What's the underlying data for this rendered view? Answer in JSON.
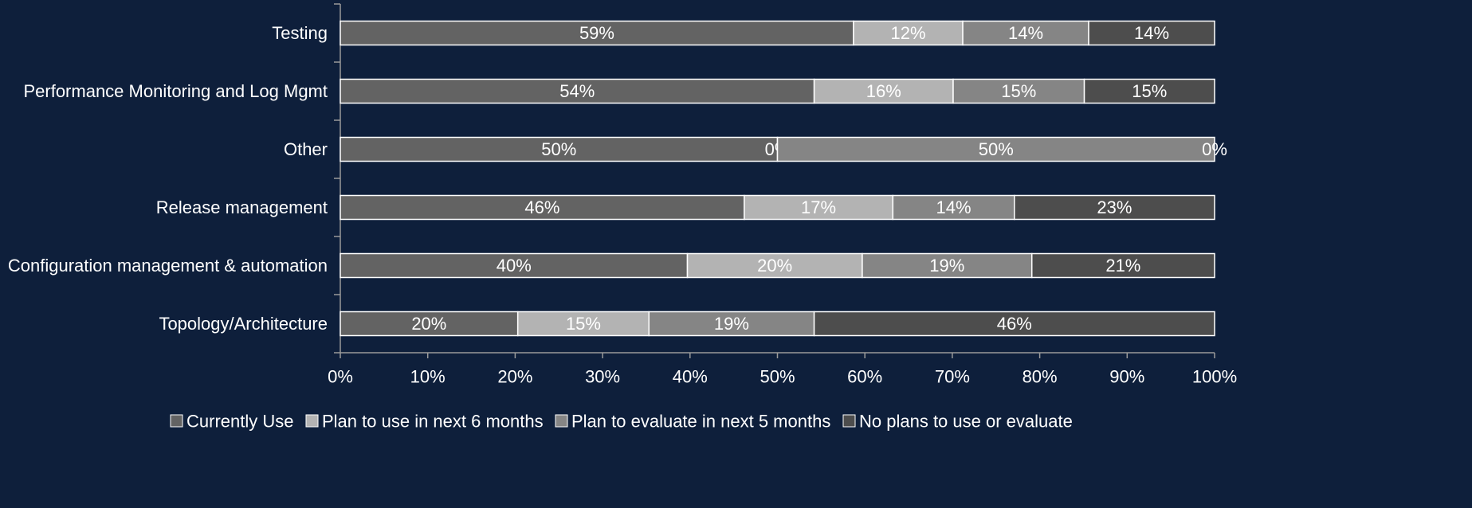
{
  "chart_data": {
    "type": "stacked-bar-horizontal",
    "categories": [
      "Testing",
      "Performance Monitoring and Log Mgmt",
      "Other",
      "Release management",
      "Configuration management & automation",
      "Topology/Architecture"
    ],
    "series": [
      {
        "name": "Currently Use",
        "color": "#636363",
        "values": [
          58.7,
          54.2,
          50,
          46.2,
          39.7,
          20.3
        ],
        "value_labels": [
          "59%",
          "54%",
          "50%",
          "46%",
          "40%",
          "20%"
        ]
      },
      {
        "name": "Plan to use in next 6 months",
        "color": "#b3b3b3",
        "values": [
          12.5,
          15.9,
          0,
          17.0,
          20.0,
          15.0
        ],
        "value_labels": [
          "12%",
          "16%",
          "0%",
          "17%",
          "20%",
          "15%"
        ]
      },
      {
        "name": "Plan to evaluate in next 5 months",
        "color": "#858585",
        "values": [
          14.4,
          15.0,
          50,
          13.9,
          19.4,
          18.9
        ],
        "value_labels": [
          "14%",
          "15%",
          "50%",
          "14%",
          "19%",
          "19%"
        ]
      },
      {
        "name": "No plans to use or evaluate",
        "color": "#4d4d4d",
        "values": [
          14.4,
          14.9,
          0,
          22.9,
          20.9,
          45.8
        ],
        "value_labels": [
          "14%",
          "15%",
          "0%",
          "23%",
          "21%",
          "46%"
        ]
      }
    ],
    "xlim": [
      0,
      100
    ],
    "xticks": [
      {
        "value": 0,
        "label": "0%"
      },
      {
        "value": 10,
        "label": "10%"
      },
      {
        "value": 20,
        "label": "20%"
      },
      {
        "value": 30,
        "label": "30%"
      },
      {
        "value": 40,
        "label": "40%"
      },
      {
        "value": 50,
        "label": "50%"
      },
      {
        "value": 60,
        "label": "60%"
      },
      {
        "value": 70,
        "label": "70%"
      },
      {
        "value": 80,
        "label": "80%"
      },
      {
        "value": 90,
        "label": "90%"
      },
      {
        "value": 100,
        "label": "100%"
      }
    ],
    "legend": "bottom"
  }
}
